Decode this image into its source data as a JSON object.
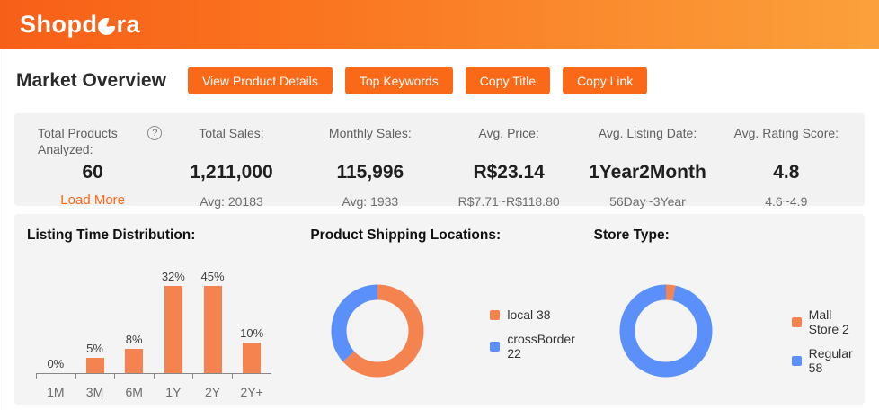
{
  "header": {
    "brand_part1": "Shopd",
    "brand_part2": "ra",
    "brand_full": "Shopdora"
  },
  "toolbar": {
    "title": "Market Overview",
    "buttons": [
      "View Product Details",
      "Top Keywords",
      "Copy Title",
      "Copy Link"
    ]
  },
  "stats": {
    "cards": [
      {
        "label": "Total Products Analyzed:",
        "value": "60",
        "sub": "Load More",
        "help_icon": "?"
      },
      {
        "label": "Total Sales:",
        "value": "1,211,000",
        "sub": "Avg: 20183"
      },
      {
        "label": "Monthly Sales:",
        "value": "115,996",
        "sub": "Avg: 1933"
      },
      {
        "label": "Avg. Price:",
        "value": "R$23.14",
        "sub": "R$7.71~R$118.80"
      },
      {
        "label": "Avg. Listing Date:",
        "value": "1Year2Month",
        "sub": "56Day~3Year"
      },
      {
        "label": "Avg. Rating Score:",
        "value": "4.8",
        "sub": "4.6~4.9"
      }
    ]
  },
  "colors": {
    "accent_orange": "#F96917",
    "chart_orange": "#F58350",
    "chart_blue": "#5B8FF9",
    "header_gradient_left": "#F75F18",
    "header_gradient_right": "#FBA13C"
  },
  "chart_data": [
    {
      "type": "bar",
      "title": "Listing Time Distribution:",
      "categories": [
        "1M",
        "3M",
        "6M",
        "1Y",
        "2Y",
        "2Y+"
      ],
      "values": [
        0,
        5,
        8,
        32,
        45,
        10
      ],
      "value_labels": [
        "0%",
        "5%",
        "8%",
        "32%",
        "45%",
        "10%"
      ],
      "unit": "%",
      "bar_color": "#F58350",
      "grid": false,
      "ylim": [
        0,
        45
      ]
    },
    {
      "type": "pie",
      "title": "Product Shipping Locations:",
      "legend_position": "right",
      "segments": [
        {
          "label": "local",
          "value": 38,
          "color": "#F58350"
        },
        {
          "label": "crossBorder",
          "value": 22,
          "color": "#5B8FF9"
        }
      ]
    },
    {
      "type": "pie",
      "title": "Store Type:",
      "legend_position": "right",
      "segments": [
        {
          "label": "Mall Store",
          "value": 2,
          "color": "#F58350"
        },
        {
          "label": "Regular",
          "value": 58,
          "color": "#5B8FF9"
        }
      ]
    }
  ]
}
